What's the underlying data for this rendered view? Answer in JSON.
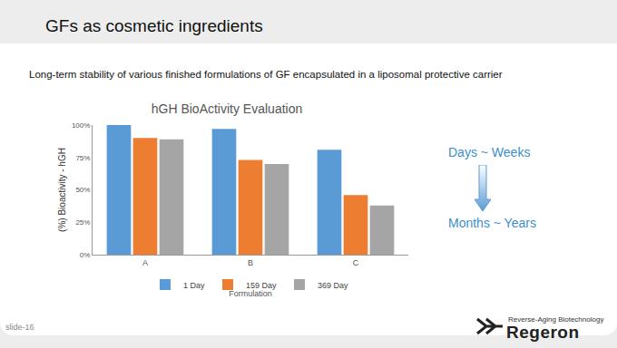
{
  "slide": {
    "title": "GFs as cosmetic ingredients",
    "subtitle": "Long-term stability of various finished formulations of GF encapsulated in a liposomal protective carrier",
    "annotations": [
      "Days ~ Weeks",
      "Months ~ Years"
    ],
    "page": "slide-16",
    "logo": "Regeron",
    "tagline": "Reverse-Aging Biotechnology"
  },
  "chart_data": {
    "type": "bar",
    "title": "hGH BioActivity Evaluation",
    "x_label": "Formulation",
    "y_label": "(%) Bioactivity - hGH",
    "categories": [
      "A",
      "B",
      "C"
    ],
    "series": [
      {
        "name": "1 Day",
        "color": "#5b9bd5",
        "values": [
          100,
          97,
          81
        ]
      },
      {
        "name": "159 Day",
        "color": "#ed7d31",
        "values": [
          90,
          73,
          46
        ]
      },
      {
        "name": "369 Day",
        "color": "#a5a5a5",
        "values": [
          89,
          70,
          38
        ]
      }
    ],
    "ylim": [
      0,
      100
    ],
    "yticks": [
      {
        "value": 0,
        "label": "0%"
      },
      {
        "value": 25,
        "label": "25%"
      },
      {
        "value": 50,
        "label": "50%"
      },
      {
        "value": 75,
        "label": "75%"
      },
      {
        "value": 100,
        "label": "100%"
      }
    ],
    "grid": false,
    "legend": "bottom"
  }
}
